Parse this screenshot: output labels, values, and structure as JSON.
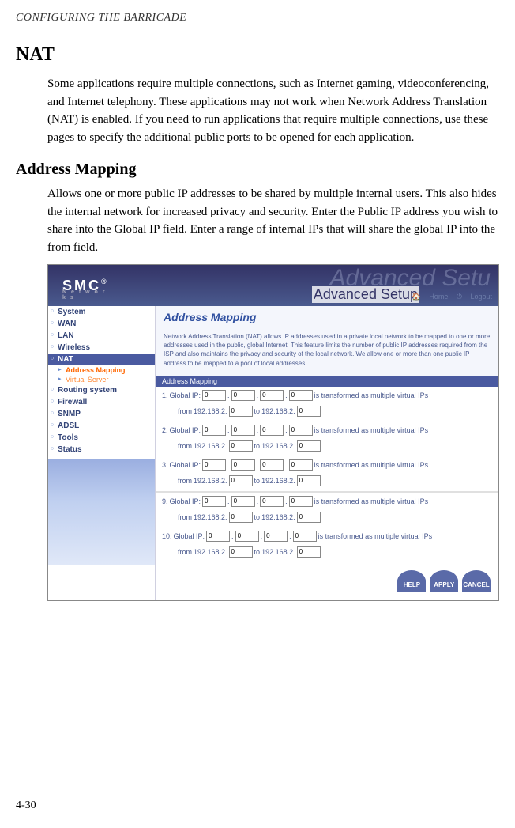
{
  "page_header": "CONFIGURING THE BARRICADE",
  "section_title": "NAT",
  "section_text": "Some applications require multiple connections, such as Internet gaming, videoconferencing, and Internet telephony. These applications may not work when Network Address Translation (NAT) is enabled. If you need to run applications that require multiple connections, use these pages to specify the additional public ports to be opened for each application.",
  "subsection_title": "Address Mapping",
  "subsection_text": "Allows one or more public IP addresses to be shared by multiple internal users. This also hides the internal network for increased privacy and security. Enter the Public IP address you wish to share into the Global IP field. Enter a range of internal IPs that will share the global IP into the from field.",
  "page_number": "4-30",
  "screenshot": {
    "logo": "SMC",
    "logo_sub": "N e t w o r k s",
    "logo_reg": "®",
    "adv_setup_bg": "Advanced Setu",
    "adv_setup": "Advanced Setup",
    "home": "Home",
    "logout": "Logout",
    "nav": {
      "system": "System",
      "wan": "WAN",
      "lan": "LAN",
      "wireless": "Wireless",
      "nat": "NAT",
      "nat_addr": "Address Mapping",
      "nat_vs": "Virtual Server",
      "routing": "Routing system",
      "firewall": "Firewall",
      "snmp": "SNMP",
      "adsl": "ADSL",
      "tools": "Tools",
      "status": "Status"
    },
    "content_title": "Address Mapping",
    "content_desc": "Network Address Translation (NAT) allows IP addresses used in a private local network to be mapped to one or more addresses used in the public, global Internet. This feature limits the number of public IP addresses required from the ISP and also maintains the privacy and security of the local network. We allow one or more than one public IP address to be mapped to a pool of local addresses.",
    "mapping_header": "Address Mapping",
    "global_ip_label": "Global IP:",
    "transformed_label": "is transformed as multiple virtual IPs",
    "from_label": "from",
    "to_label": "to",
    "ip_prefix": "192.168.2.",
    "rows_top": [
      "1.",
      "2.",
      "3."
    ],
    "rows_bottom": [
      "9.",
      "10."
    ],
    "oct_val": "0",
    "btn_help": "HELP",
    "btn_apply": "APPLY",
    "btn_cancel": "CANCEL"
  }
}
